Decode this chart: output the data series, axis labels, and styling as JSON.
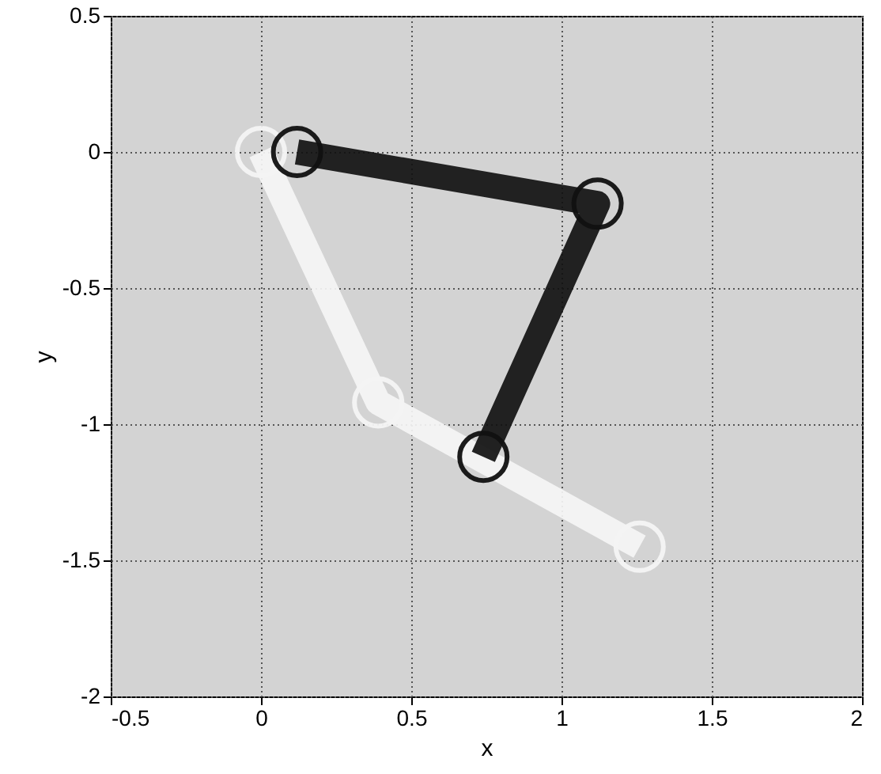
{
  "chart_data": {
    "type": "line",
    "xlabel": "x",
    "ylabel": "y",
    "xlim": [
      -0.5,
      2
    ],
    "ylim": [
      -2,
      0.5
    ],
    "xticks": [
      -0.5,
      0,
      0.5,
      1,
      1.5,
      2
    ],
    "yticks": [
      -2,
      -1.5,
      -1,
      -0.5,
      0,
      0.5
    ],
    "grid": true,
    "marker": "circle",
    "line_style": "solid",
    "series": [
      {
        "color": "#f5f5f5",
        "x": [
          0,
          0.39,
          1.26
        ],
        "values": [
          0,
          -0.92,
          -1.45
        ]
      },
      {
        "color": "#111111",
        "x": [
          0.12,
          1.12,
          0.74
        ],
        "values": [
          0,
          -0.19,
          -1.12
        ]
      }
    ]
  }
}
